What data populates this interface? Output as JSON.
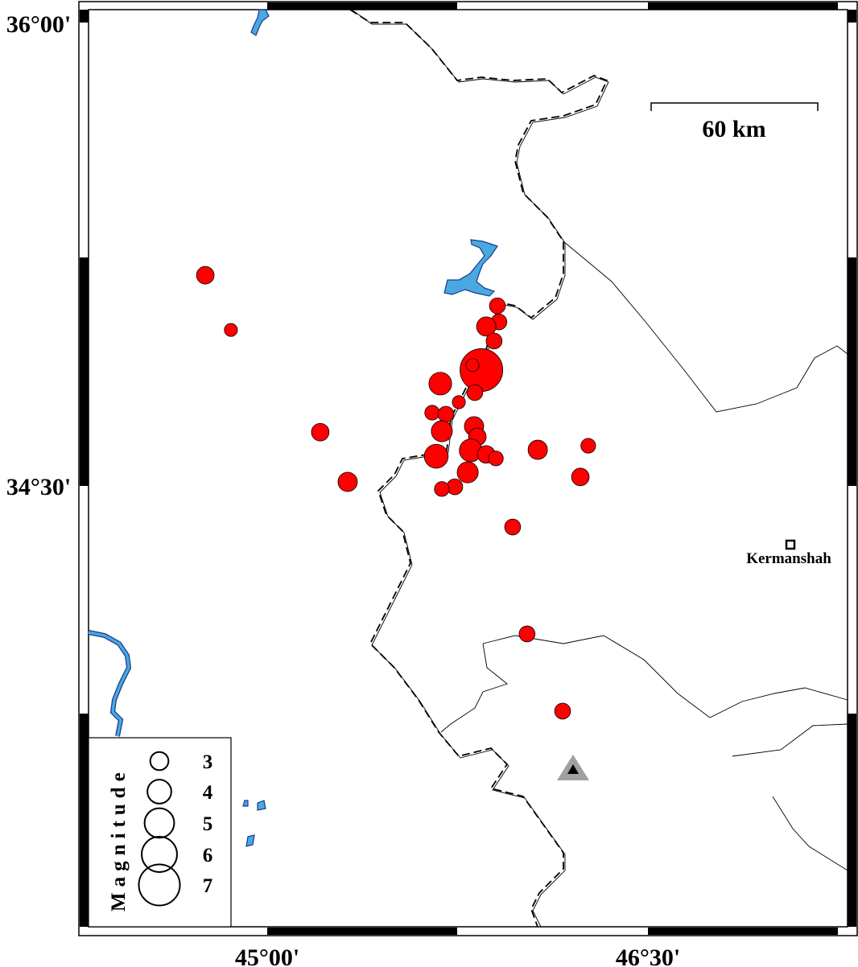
{
  "map": {
    "lon_labels": [
      {
        "lon": 45.0,
        "text": "45°00'"
      },
      {
        "lon": 46.5,
        "text": "46°30'"
      }
    ],
    "lat_labels": [
      {
        "lat": 36.0,
        "text": "36°00'"
      },
      {
        "lat": 34.5,
        "text": "34°30'"
      }
    ],
    "scale_bar": {
      "label": "60 km"
    },
    "city": {
      "name": "Kermanshah"
    },
    "colors": {
      "event": "#ff0000",
      "water": "#4aa8e0",
      "station": "#a0a0a0"
    },
    "station_icon": "triangle-marker",
    "events": [
      {
        "lon": 44.756,
        "lat": 35.182,
        "mag": 2.9
      },
      {
        "lon": 44.857,
        "lat": 35.005,
        "mag": 2.1
      },
      {
        "lon": 45.209,
        "lat": 34.674,
        "mag": 2.9
      },
      {
        "lon": 45.317,
        "lat": 34.513,
        "mag": 3.2
      },
      {
        "lon": 45.682,
        "lat": 34.831,
        "mag": 3.8
      },
      {
        "lon": 45.844,
        "lat": 34.875,
        "mag": 7.3
      },
      {
        "lon": 45.809,
        "lat": 34.891,
        "mag": 2.1
      },
      {
        "lon": 45.907,
        "lat": 35.083,
        "mag": 2.6
      },
      {
        "lon": 45.913,
        "lat": 35.031,
        "mag": 2.6
      },
      {
        "lon": 45.863,
        "lat": 35.016,
        "mag": 3.2
      },
      {
        "lon": 45.894,
        "lat": 34.969,
        "mag": 2.6
      },
      {
        "lon": 45.818,
        "lat": 34.802,
        "mag": 2.6
      },
      {
        "lon": 45.755,
        "lat": 34.771,
        "mag": 2.1
      },
      {
        "lon": 45.65,
        "lat": 34.737,
        "mag": 2.4
      },
      {
        "lon": 45.704,
        "lat": 34.732,
        "mag": 2.6
      },
      {
        "lon": 45.688,
        "lat": 34.677,
        "mag": 3.5
      },
      {
        "lon": 45.815,
        "lat": 34.693,
        "mag": 3.2
      },
      {
        "lon": 45.828,
        "lat": 34.659,
        "mag": 2.9
      },
      {
        "lon": 45.666,
        "lat": 34.596,
        "mag": 4.0
      },
      {
        "lon": 45.802,
        "lat": 34.615,
        "mag": 3.8
      },
      {
        "lon": 45.863,
        "lat": 34.602,
        "mag": 2.9
      },
      {
        "lon": 45.901,
        "lat": 34.589,
        "mag": 2.4
      },
      {
        "lon": 45.79,
        "lat": 34.544,
        "mag": 3.5
      },
      {
        "lon": 45.739,
        "lat": 34.497,
        "mag": 2.6
      },
      {
        "lon": 45.688,
        "lat": 34.49,
        "mag": 2.4
      },
      {
        "lon": 46.066,
        "lat": 34.617,
        "mag": 3.2
      },
      {
        "lon": 46.265,
        "lat": 34.63,
        "mag": 2.4
      },
      {
        "lon": 46.234,
        "lat": 34.529,
        "mag": 2.9
      },
      {
        "lon": 45.967,
        "lat": 34.367,
        "mag": 2.6
      },
      {
        "lon": 46.024,
        "lat": 34.021,
        "mag": 2.6
      },
      {
        "lon": 46.164,
        "lat": 33.771,
        "mag": 2.6
      }
    ]
  },
  "legend": {
    "title": "Magnitude",
    "entries": [
      {
        "mag": 3,
        "label": "3"
      },
      {
        "mag": 4,
        "label": "4"
      },
      {
        "mag": 5,
        "label": "5"
      },
      {
        "mag": 6,
        "label": "6"
      },
      {
        "mag": 7,
        "label": "7"
      }
    ]
  }
}
